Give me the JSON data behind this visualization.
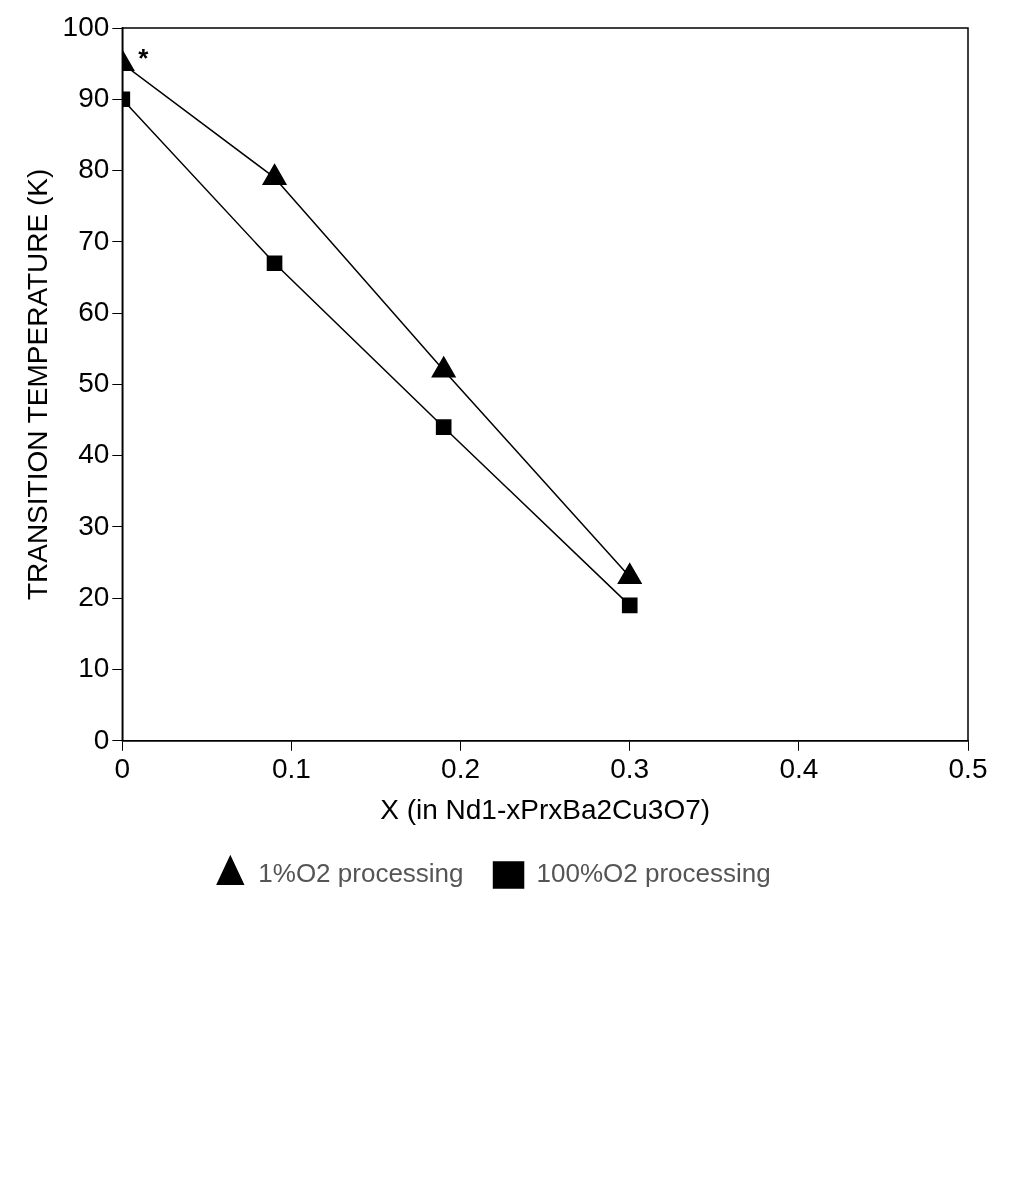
{
  "chart_data": {
    "type": "line",
    "xlabel": "X (in Nd1-xPrxBa2Cu3O7)",
    "ylabel": "TRANSITION TEMPERATURE (K)",
    "x": [
      0,
      0.09,
      0.19,
      0.3
    ],
    "series": [
      {
        "name": "1%O2 processing",
        "color": "#000000",
        "marker": "triangle",
        "values": [
          95,
          79,
          52,
          23
        ]
      },
      {
        "name": "100%O2 processing",
        "color": "#000000",
        "marker": "square",
        "values": [
          90,
          67,
          44,
          19
        ]
      }
    ],
    "xlim": [
      0,
      0.5
    ],
    "xticks": [
      0,
      0.1,
      0.2,
      0.3,
      0.4,
      0.5
    ],
    "ylim": [
      0,
      100
    ],
    "yticks": [
      0,
      10,
      20,
      30,
      40,
      50,
      60,
      70,
      80,
      90,
      100
    ],
    "grid": false,
    "legend": "bottom",
    "line_style": "solid",
    "annotations": [
      {
        "text": "*",
        "x": 0,
        "y": 95
      }
    ]
  }
}
